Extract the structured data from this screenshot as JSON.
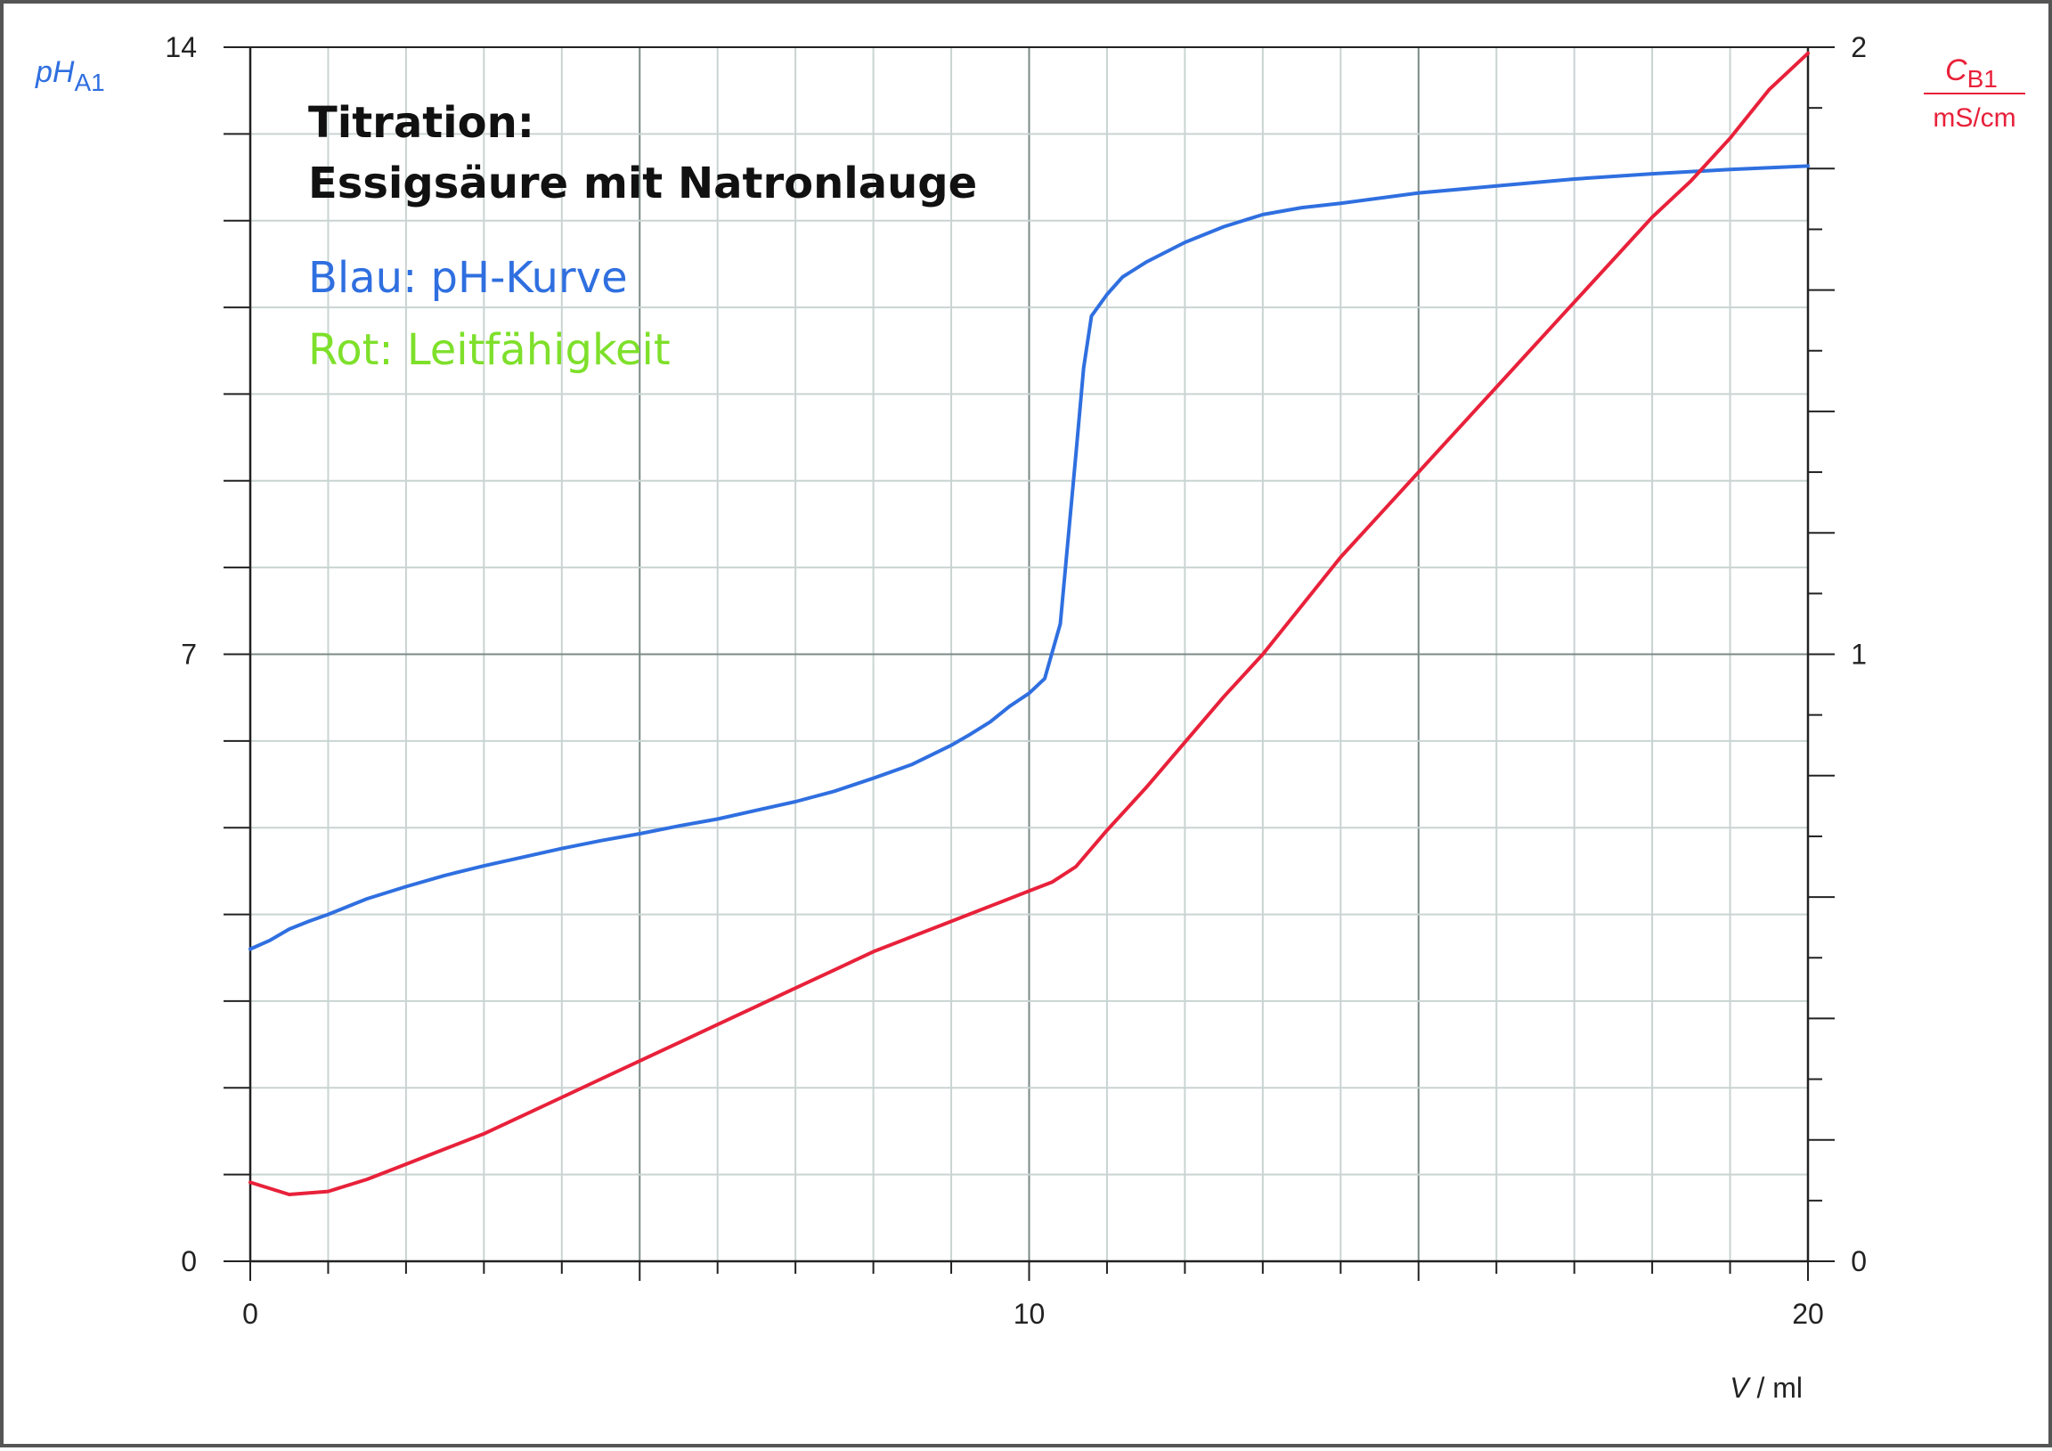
{
  "chart_data": {
    "type": "line",
    "title_lines": [
      "Titration:",
      "Essigsäure mit Natronlauge"
    ],
    "annotations": [
      {
        "text": "Blau: pH-Kurve",
        "color": "#2f6fe0"
      },
      {
        "text": "Rot: Leitfähigkeit",
        "color": "#7ee02a"
      }
    ],
    "x_axis": {
      "label_var": "V",
      "label_unit": " / ml",
      "range": [
        0,
        20
      ],
      "tick_labels": [
        "0",
        "10",
        "20"
      ]
    },
    "y_left": {
      "label_var": "pH",
      "label_sub": "A1",
      "color": "#2f6fe0",
      "range": [
        0,
        14
      ],
      "tick_labels": [
        "0",
        "7",
        "14"
      ]
    },
    "y_right": {
      "label_var": "C",
      "label_sub": "B1",
      "label_unit": "mS/cm",
      "color": "#e8213a",
      "range": [
        0,
        2
      ],
      "tick_labels": [
        "0",
        "1",
        "2"
      ]
    },
    "grid": true,
    "series": [
      {
        "axis": "left",
        "color": "#2f6fe0",
        "x": [
          0,
          0.25,
          0.5,
          0.75,
          1,
          1.5,
          2,
          2.5,
          3,
          3.5,
          4,
          4.5,
          5,
          5.5,
          6,
          6.5,
          7,
          7.5,
          8,
          8.5,
          9,
          9.25,
          9.5,
          9.75,
          10,
          10.2,
          10.4,
          10.6,
          10.7,
          10.8,
          11,
          11.2,
          11.5,
          12,
          12.5,
          13,
          13.5,
          14,
          15,
          16,
          17,
          18,
          19,
          20
        ],
        "y": [
          3.6,
          3.7,
          3.83,
          3.92,
          4.0,
          4.18,
          4.32,
          4.45,
          4.56,
          4.66,
          4.76,
          4.85,
          4.93,
          5.02,
          5.1,
          5.2,
          5.3,
          5.42,
          5.57,
          5.73,
          5.95,
          6.08,
          6.22,
          6.4,
          6.55,
          6.72,
          7.35,
          9.3,
          10.3,
          10.9,
          11.15,
          11.35,
          11.52,
          11.75,
          11.93,
          12.07,
          12.15,
          12.2,
          12.32,
          12.4,
          12.48,
          12.54,
          12.59,
          12.63
        ]
      },
      {
        "axis": "right",
        "color": "#e8213a",
        "x": [
          0,
          0.5,
          1,
          1.5,
          2,
          2.5,
          3,
          3.5,
          4,
          4.5,
          5,
          5.5,
          6,
          6.5,
          7,
          7.5,
          8,
          8.5,
          9,
          9.5,
          10,
          10.3,
          10.6,
          11,
          11.5,
          12,
          12.5,
          13,
          13.5,
          14,
          14.5,
          15,
          15.5,
          16,
          16.5,
          17,
          17.5,
          18,
          18.5,
          19,
          19.5,
          20
        ],
        "y": [
          0.13,
          0.11,
          0.115,
          0.135,
          0.16,
          0.185,
          0.21,
          0.24,
          0.27,
          0.3,
          0.33,
          0.36,
          0.39,
          0.42,
          0.45,
          0.48,
          0.51,
          0.535,
          0.56,
          0.585,
          0.61,
          0.625,
          0.65,
          0.71,
          0.78,
          0.855,
          0.93,
          1.0,
          1.08,
          1.16,
          1.23,
          1.3,
          1.37,
          1.44,
          1.51,
          1.58,
          1.65,
          1.72,
          1.78,
          1.85,
          1.93,
          1.99
        ]
      }
    ]
  }
}
